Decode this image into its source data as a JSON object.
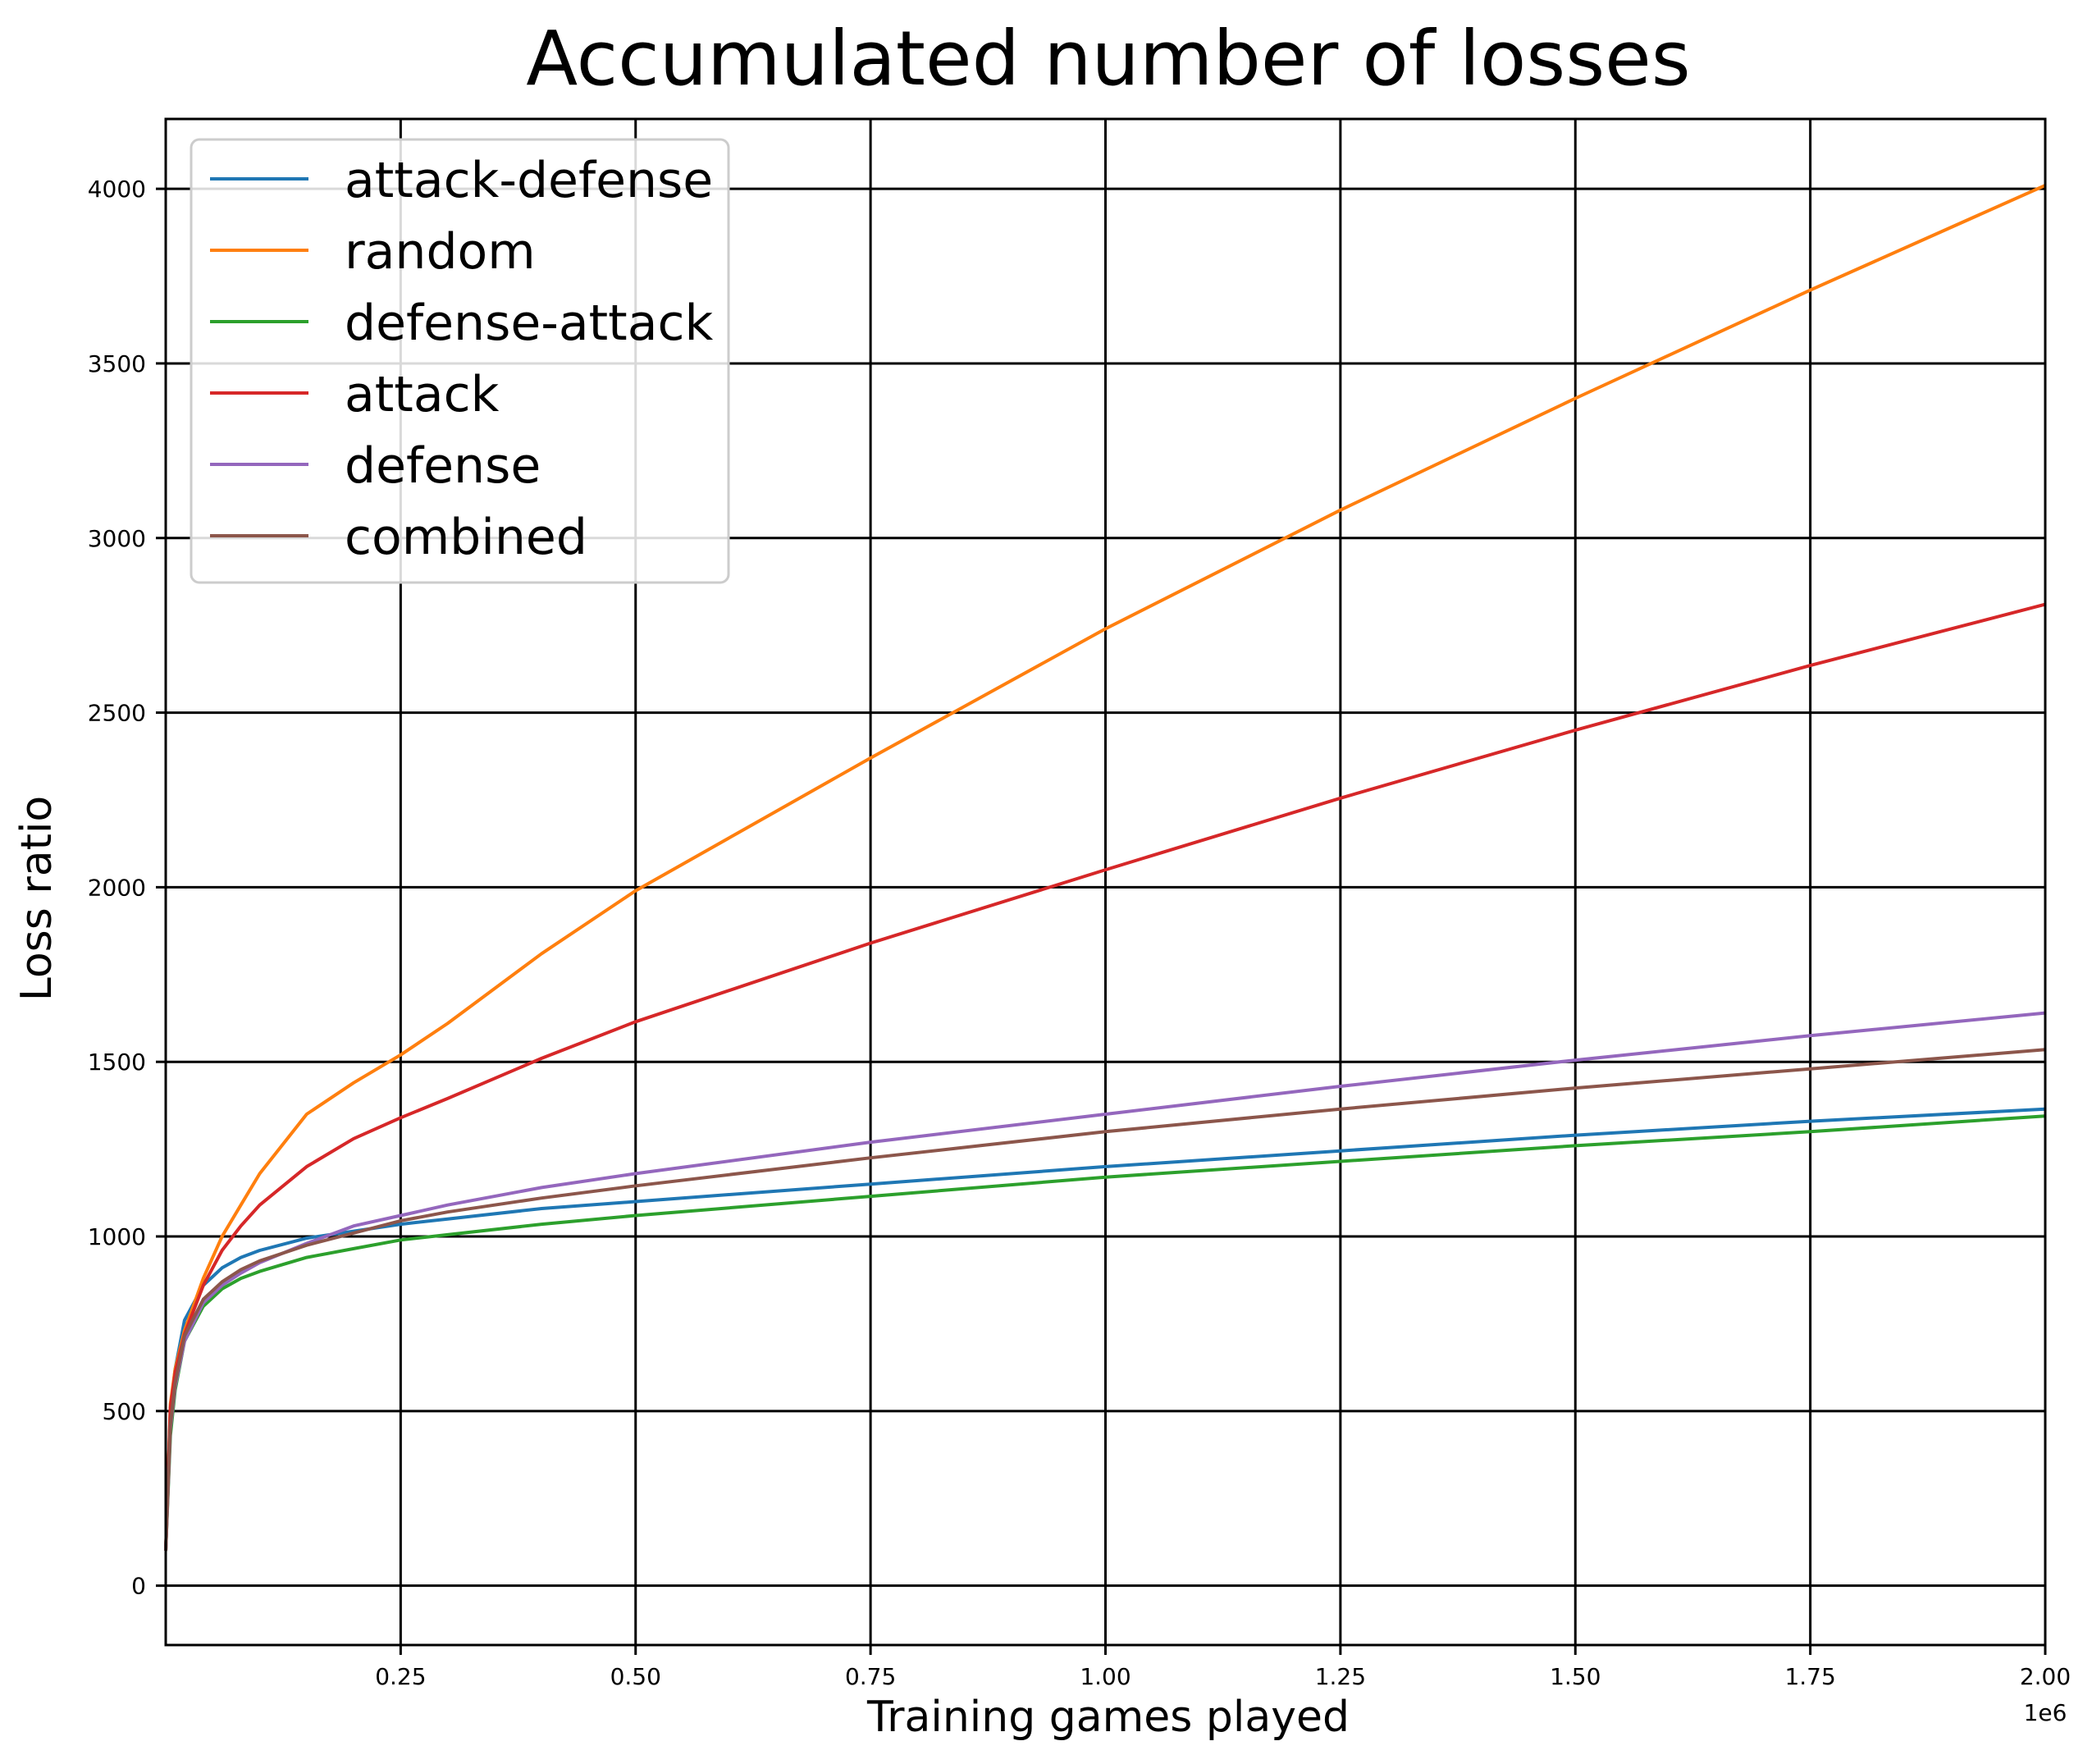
{
  "chart_data": {
    "type": "line",
    "title": "Accumulated number of losses",
    "xlabel": "Training games played",
    "ylabel": "Loss ratio",
    "x_offset_label": "1e6",
    "xlim": [
      0,
      2.0
    ],
    "ylim": [
      -170,
      4200
    ],
    "xticks": [
      0.25,
      0.5,
      0.75,
      1.0,
      1.25,
      1.5,
      1.75,
      2.0
    ],
    "xtick_labels": [
      "0.25",
      "0.50",
      "0.75",
      "1.00",
      "1.25",
      "1.50",
      "1.75",
      "2.00"
    ],
    "yticks": [
      0,
      500,
      1000,
      1500,
      2000,
      2500,
      3000,
      3500,
      4000
    ],
    "ytick_labels": [
      "0",
      "500",
      "1000",
      "1500",
      "2000",
      "2500",
      "3000",
      "3500",
      "4000"
    ],
    "grid": true,
    "legend_position": "top-left",
    "x": [
      0.0,
      0.005,
      0.01,
      0.02,
      0.04,
      0.06,
      0.08,
      0.1,
      0.15,
      0.2,
      0.25,
      0.3,
      0.4,
      0.5,
      0.75,
      1.0,
      1.25,
      1.5,
      1.75,
      2.0
    ],
    "series": [
      {
        "name": "attack-defense",
        "color": "#1f77b4",
        "values": [
          100,
          500,
          620,
          760,
          860,
          910,
          940,
          960,
          995,
          1015,
          1035,
          1050,
          1080,
          1100,
          1150,
          1200,
          1245,
          1290,
          1330,
          1365
        ]
      },
      {
        "name": "random",
        "color": "#ff7f0e",
        "values": [
          100,
          520,
          620,
          730,
          880,
          1000,
          1090,
          1180,
          1350,
          1440,
          1520,
          1610,
          1810,
          1990,
          2370,
          2740,
          3080,
          3400,
          3710,
          4010
        ]
      },
      {
        "name": "defense-attack",
        "color": "#2ca02c",
        "values": [
          100,
          430,
          560,
          700,
          800,
          850,
          880,
          900,
          940,
          965,
          990,
          1005,
          1035,
          1060,
          1115,
          1170,
          1215,
          1260,
          1300,
          1345
        ]
      },
      {
        "name": "attack",
        "color": "#d62728",
        "values": [
          100,
          510,
          610,
          720,
          860,
          960,
          1030,
          1090,
          1200,
          1280,
          1340,
          1395,
          1510,
          1615,
          1840,
          2050,
          2255,
          2450,
          2635,
          2810
        ]
      },
      {
        "name": "defense",
        "color": "#9467bd",
        "values": [
          100,
          450,
          570,
          700,
          810,
          860,
          895,
          925,
          980,
          1030,
          1060,
          1090,
          1140,
          1180,
          1270,
          1350,
          1430,
          1505,
          1575,
          1640
        ]
      },
      {
        "name": "combined",
        "color": "#8c564b",
        "values": [
          100,
          460,
          580,
          715,
          820,
          870,
          905,
          930,
          975,
          1010,
          1045,
          1070,
          1110,
          1145,
          1225,
          1300,
          1365,
          1425,
          1480,
          1535
        ]
      }
    ]
  }
}
